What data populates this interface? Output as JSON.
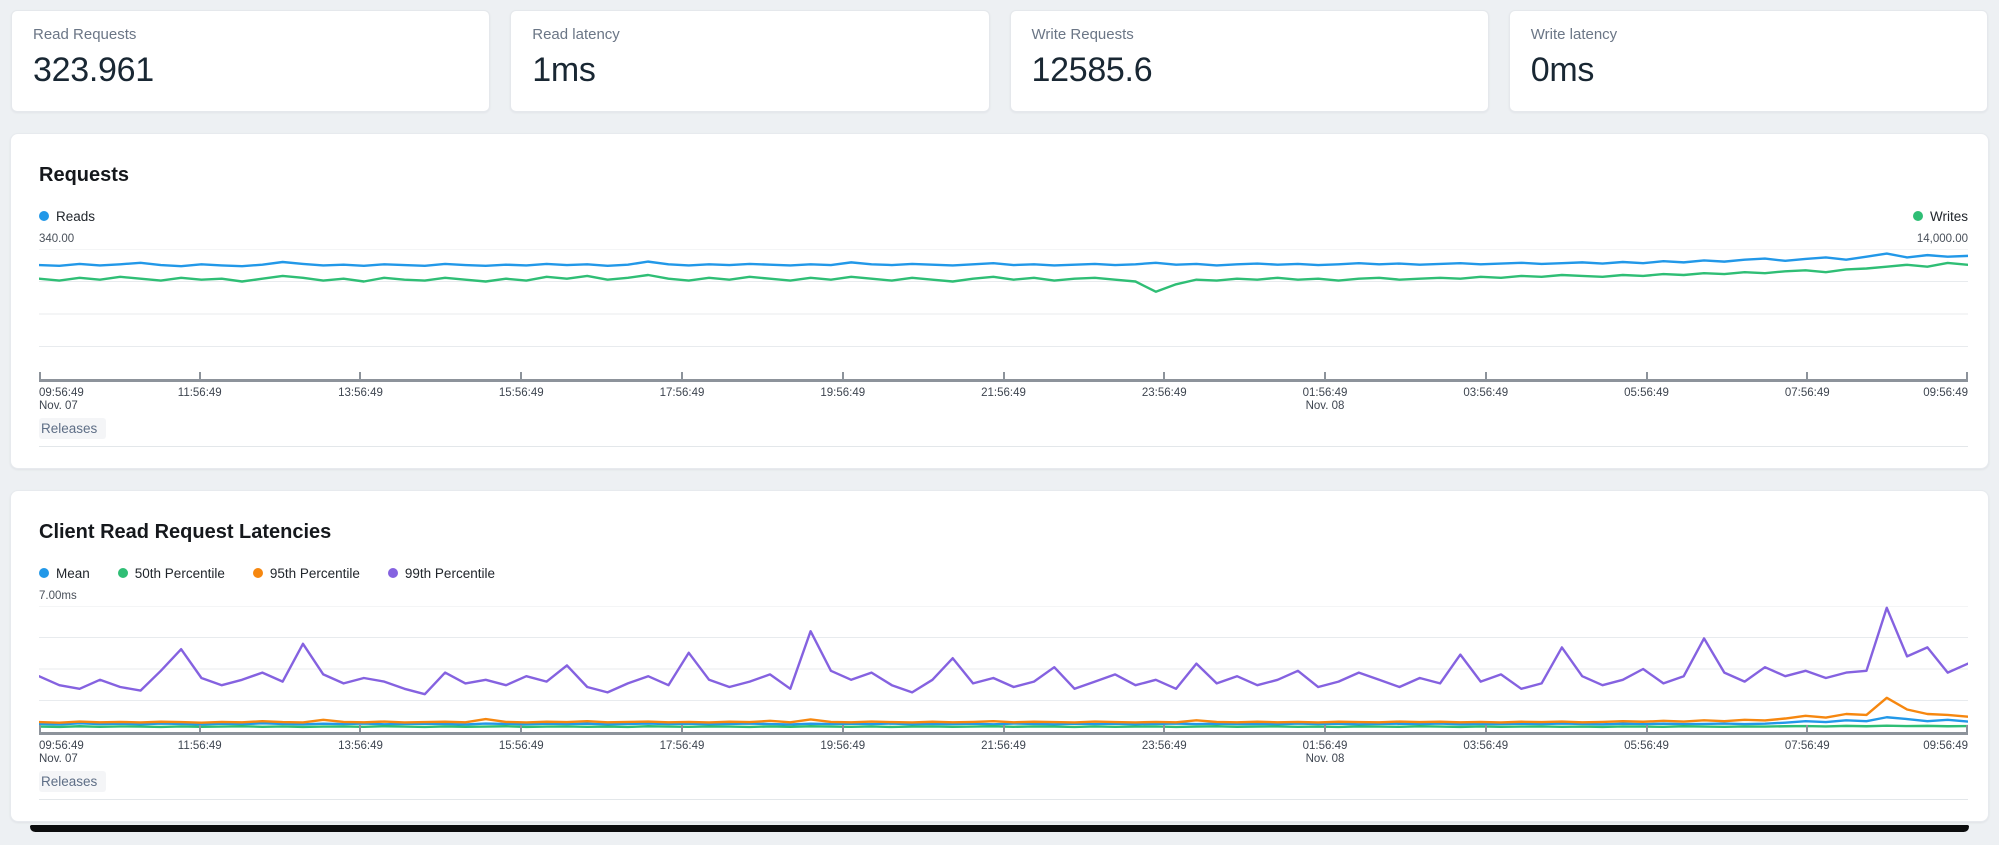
{
  "stats": [
    {
      "label": "Read Requests",
      "value": "323.961"
    },
    {
      "label": "Read latency",
      "value": "1ms"
    },
    {
      "label": "Write Requests",
      "value": "12585.6"
    },
    {
      "label": "Write latency",
      "value": "0ms"
    }
  ],
  "releases_label": "Releases",
  "colors": {
    "blue": "#2298e8",
    "green": "#2fbe75",
    "orange": "#f6870f",
    "purple": "#8562e0",
    "gridline": "#e8ebee",
    "axis": "#8d939b",
    "background": "#edf0f3"
  },
  "chart_data": [
    {
      "type": "line",
      "title": "Requests",
      "legend_layout": "split",
      "grid": true,
      "axis_max_left": "340.00",
      "axis_max_right": "14,000.00",
      "x_tick_labels": [
        "09:56:49",
        "11:56:49",
        "13:56:49",
        "15:56:49",
        "17:56:49",
        "19:56:49",
        "21:56:49",
        "23:56:49",
        "01:56:49",
        "03:56:49",
        "05:56:49",
        "07:56:49",
        "09:56:49"
      ],
      "x_sub_labels": [
        {
          "index": 0,
          "label": "Nov. 07"
        },
        {
          "index": 8,
          "label": "Nov. 08"
        }
      ],
      "series": [
        {
          "name": "Reads",
          "color": "#2298e8",
          "axis": "left",
          "ymax": 340,
          "values": [
            298,
            296,
            301,
            297,
            300,
            304,
            298,
            295,
            300,
            297,
            295,
            299,
            306,
            301,
            297,
            299,
            296,
            300,
            298,
            296,
            301,
            298,
            296,
            299,
            297,
            301,
            298,
            300,
            296,
            299,
            307,
            300,
            297,
            300,
            298,
            301,
            299,
            297,
            300,
            298,
            305,
            300,
            298,
            301,
            299,
            297,
            300,
            303,
            298,
            300,
            297,
            299,
            301,
            298,
            300,
            304,
            299,
            301,
            297,
            300,
            302,
            299,
            301,
            298,
            300,
            303,
            300,
            302,
            299,
            301,
            303,
            300,
            302,
            304,
            301,
            303,
            305,
            302,
            306,
            303,
            308,
            305,
            310,
            307,
            312,
            315,
            309,
            314,
            318,
            312,
            320,
            328,
            318,
            324,
            320,
            322
          ]
        },
        {
          "name": "Writes",
          "color": "#2fbe75",
          "axis": "right",
          "ymax": 14000,
          "values": [
            10800,
            10600,
            10900,
            10700,
            11000,
            10800,
            10600,
            10900,
            10700,
            10800,
            10500,
            10800,
            11100,
            10900,
            10600,
            10800,
            10500,
            10900,
            10700,
            10600,
            10900,
            10700,
            10500,
            10800,
            10600,
            11000,
            10800,
            11100,
            10700,
            10900,
            11200,
            10800,
            10600,
            10900,
            10700,
            11000,
            10800,
            10600,
            10900,
            10700,
            11000,
            10800,
            10600,
            10900,
            10700,
            10500,
            10800,
            11000,
            10700,
            10900,
            10600,
            10800,
            10900,
            10700,
            10500,
            9400,
            10200,
            10700,
            10600,
            10800,
            10700,
            10900,
            10700,
            10800,
            10600,
            10800,
            10900,
            10700,
            10800,
            10900,
            10800,
            11000,
            10900,
            11100,
            11000,
            11200,
            11100,
            11000,
            11200,
            11100,
            11300,
            11200,
            11400,
            11300,
            11500,
            11400,
            11600,
            11700,
            11500,
            11800,
            11900,
            12100,
            12300,
            12100,
            12500,
            12300
          ]
        }
      ]
    },
    {
      "type": "line",
      "title": "Client Read Request Latencies",
      "legend_layout": "row",
      "grid": true,
      "axis_max_left": "7.00ms",
      "x_tick_labels": [
        "09:56:49",
        "11:56:49",
        "13:56:49",
        "15:56:49",
        "17:56:49",
        "19:56:49",
        "21:56:49",
        "23:56:49",
        "01:56:49",
        "03:56:49",
        "05:56:49",
        "07:56:49",
        "09:56:49"
      ],
      "x_sub_labels": [
        {
          "index": 0,
          "label": "Nov. 07"
        },
        {
          "index": 8,
          "label": "Nov. 08"
        }
      ],
      "series": [
        {
          "name": "Mean",
          "color": "#2298e8",
          "axis": "left",
          "ymax": 7,
          "values": [
            0.45,
            0.42,
            0.48,
            0.44,
            0.46,
            0.43,
            0.47,
            0.45,
            0.42,
            0.46,
            0.44,
            0.48,
            0.45,
            0.43,
            0.46,
            0.44,
            0.47,
            0.43,
            0.45,
            0.46,
            0.44,
            0.42,
            0.47,
            0.45,
            0.43,
            0.46,
            0.44,
            0.46,
            0.43,
            0.45,
            0.47,
            0.44,
            0.46,
            0.43,
            0.45,
            0.47,
            0.44,
            0.42,
            0.46,
            0.44,
            0.46,
            0.44,
            0.47,
            0.43,
            0.45,
            0.44,
            0.46,
            0.43,
            0.47,
            0.45,
            0.43,
            0.46,
            0.44,
            0.46,
            0.43,
            0.45,
            0.47,
            0.44,
            0.46,
            0.44,
            0.45,
            0.43,
            0.47,
            0.44,
            0.46,
            0.43,
            0.45,
            0.46,
            0.44,
            0.47,
            0.43,
            0.45,
            0.44,
            0.46,
            0.44,
            0.47,
            0.45,
            0.43,
            0.46,
            0.44,
            0.46,
            0.44,
            0.45,
            0.47,
            0.44,
            0.46,
            0.52,
            0.6,
            0.55,
            0.65,
            0.6,
            0.82,
            0.72,
            0.6,
            0.68,
            0.58
          ]
        },
        {
          "name": "50th Percentile",
          "color": "#2fbe75",
          "axis": "left",
          "ymax": 7,
          "values": [
            0.3,
            0.28,
            0.32,
            0.29,
            0.31,
            0.3,
            0.28,
            0.31,
            0.29,
            0.3,
            0.32,
            0.29,
            0.31,
            0.28,
            0.3,
            0.31,
            0.29,
            0.32,
            0.3,
            0.28,
            0.31,
            0.29,
            0.3,
            0.32,
            0.28,
            0.3,
            0.31,
            0.29,
            0.3,
            0.28,
            0.32,
            0.3,
            0.29,
            0.31,
            0.3,
            0.28,
            0.31,
            0.29,
            0.32,
            0.3,
            0.29,
            0.31,
            0.28,
            0.3,
            0.31,
            0.29,
            0.3,
            0.32,
            0.29,
            0.31,
            0.3,
            0.28,
            0.31,
            0.29,
            0.3,
            0.31,
            0.28,
            0.3,
            0.32,
            0.29,
            0.3,
            0.31,
            0.29,
            0.3,
            0.28,
            0.31,
            0.3,
            0.29,
            0.32,
            0.3,
            0.28,
            0.31,
            0.29,
            0.3,
            0.31,
            0.29,
            0.3,
            0.28,
            0.31,
            0.3,
            0.29,
            0.32,
            0.3,
            0.29,
            0.31,
            0.3,
            0.32,
            0.33,
            0.31,
            0.34,
            0.32,
            0.35,
            0.33,
            0.34,
            0.32,
            0.33
          ]
        },
        {
          "name": "95th Percentile",
          "color": "#f6870f",
          "axis": "left",
          "ymax": 7,
          "values": [
            0.55,
            0.52,
            0.58,
            0.54,
            0.56,
            0.53,
            0.57,
            0.55,
            0.52,
            0.56,
            0.54,
            0.6,
            0.55,
            0.53,
            0.68,
            0.56,
            0.54,
            0.58,
            0.53,
            0.55,
            0.57,
            0.54,
            0.72,
            0.56,
            0.53,
            0.57,
            0.55,
            0.6,
            0.54,
            0.56,
            0.58,
            0.54,
            0.56,
            0.53,
            0.57,
            0.55,
            0.62,
            0.54,
            0.7,
            0.56,
            0.54,
            0.58,
            0.55,
            0.53,
            0.57,
            0.54,
            0.56,
            0.6,
            0.54,
            0.57,
            0.55,
            0.53,
            0.58,
            0.55,
            0.53,
            0.56,
            0.54,
            0.65,
            0.56,
            0.54,
            0.57,
            0.54,
            0.56,
            0.53,
            0.57,
            0.55,
            0.54,
            0.58,
            0.55,
            0.57,
            0.54,
            0.56,
            0.53,
            0.57,
            0.55,
            0.58,
            0.54,
            0.56,
            0.6,
            0.57,
            0.62,
            0.58,
            0.65,
            0.6,
            0.68,
            0.64,
            0.75,
            0.9,
            0.8,
            1.0,
            0.95,
            1.9,
            1.25,
            1.0,
            0.95,
            0.85
          ]
        },
        {
          "name": "99th Percentile",
          "color": "#8562e0",
          "axis": "left",
          "ymax": 7,
          "values": [
            3.1,
            2.6,
            2.4,
            2.9,
            2.5,
            2.3,
            3.4,
            4.6,
            3.0,
            2.6,
            2.9,
            3.3,
            2.8,
            4.9,
            3.2,
            2.7,
            3.0,
            2.8,
            2.4,
            2.1,
            3.3,
            2.7,
            2.9,
            2.6,
            3.1,
            2.8,
            3.7,
            2.5,
            2.2,
            2.7,
            3.1,
            2.6,
            4.4,
            2.9,
            2.5,
            2.8,
            3.2,
            2.4,
            5.6,
            3.4,
            2.9,
            3.3,
            2.6,
            2.2,
            2.9,
            4.1,
            2.7,
            3.0,
            2.5,
            2.8,
            3.6,
            2.4,
            2.8,
            3.2,
            2.6,
            2.9,
            2.4,
            3.8,
            2.7,
            3.1,
            2.6,
            2.9,
            3.4,
            2.5,
            2.8,
            3.3,
            2.9,
            2.5,
            3.0,
            2.7,
            4.3,
            2.8,
            3.2,
            2.4,
            2.7,
            4.7,
            3.1,
            2.6,
            2.9,
            3.5,
            2.7,
            3.1,
            5.2,
            3.3,
            2.8,
            3.6,
            3.1,
            3.4,
            3.0,
            3.3,
            3.4,
            6.9,
            4.2,
            4.7,
            3.3,
            3.8
          ]
        }
      ]
    }
  ]
}
